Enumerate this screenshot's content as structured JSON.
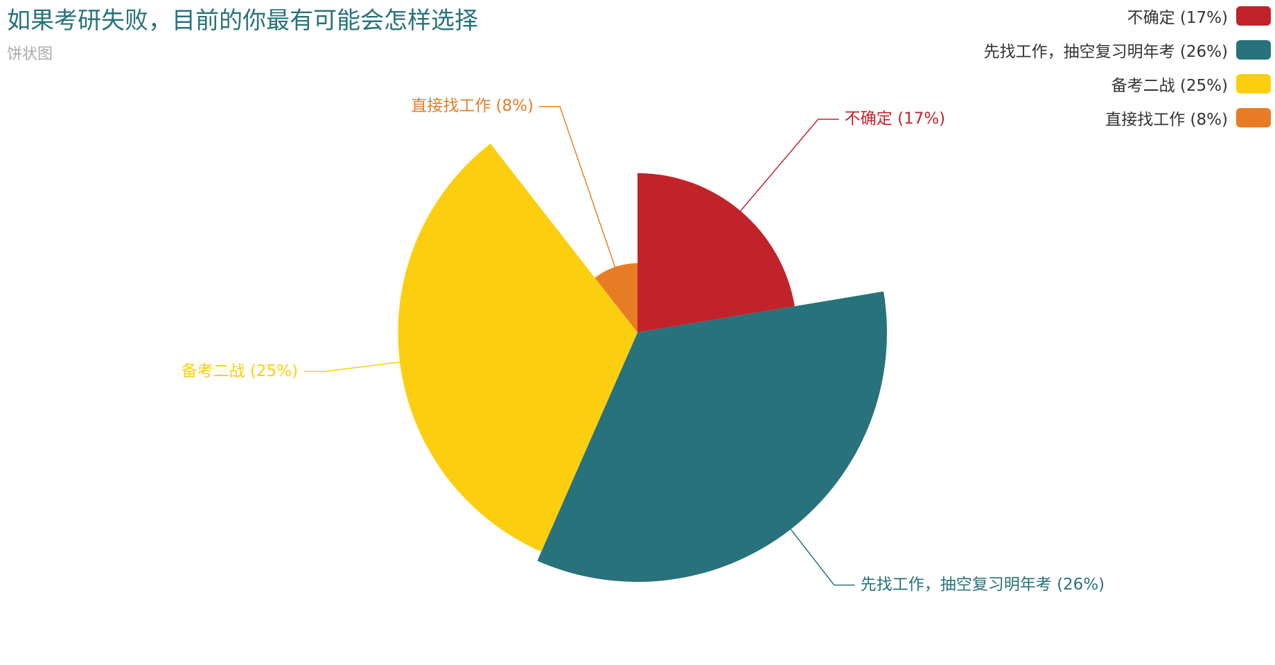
{
  "chart_data": {
    "type": "pie",
    "rose_type": "radius",
    "title": "如果考研失败，目前的你最有可能会怎样选择",
    "subtitle": "饼状图",
    "legend_position": "top-right",
    "series": [
      {
        "name": "不确定",
        "value": 17,
        "label": "不确定 (17%)",
        "color": "#c1232b"
      },
      {
        "name": "先找工作，抽空复习明年考",
        "value": 26,
        "label": "先找工作，抽空复习明年考 (26%)",
        "color": "#27727b"
      },
      {
        "name": "备考二战",
        "value": 25,
        "label": "备考二战 (25%)",
        "color": "#fcce10"
      },
      {
        "name": "直接找工作",
        "value": 8,
        "label": "直接找工作 (8%)",
        "color": "#e87c25"
      }
    ]
  }
}
